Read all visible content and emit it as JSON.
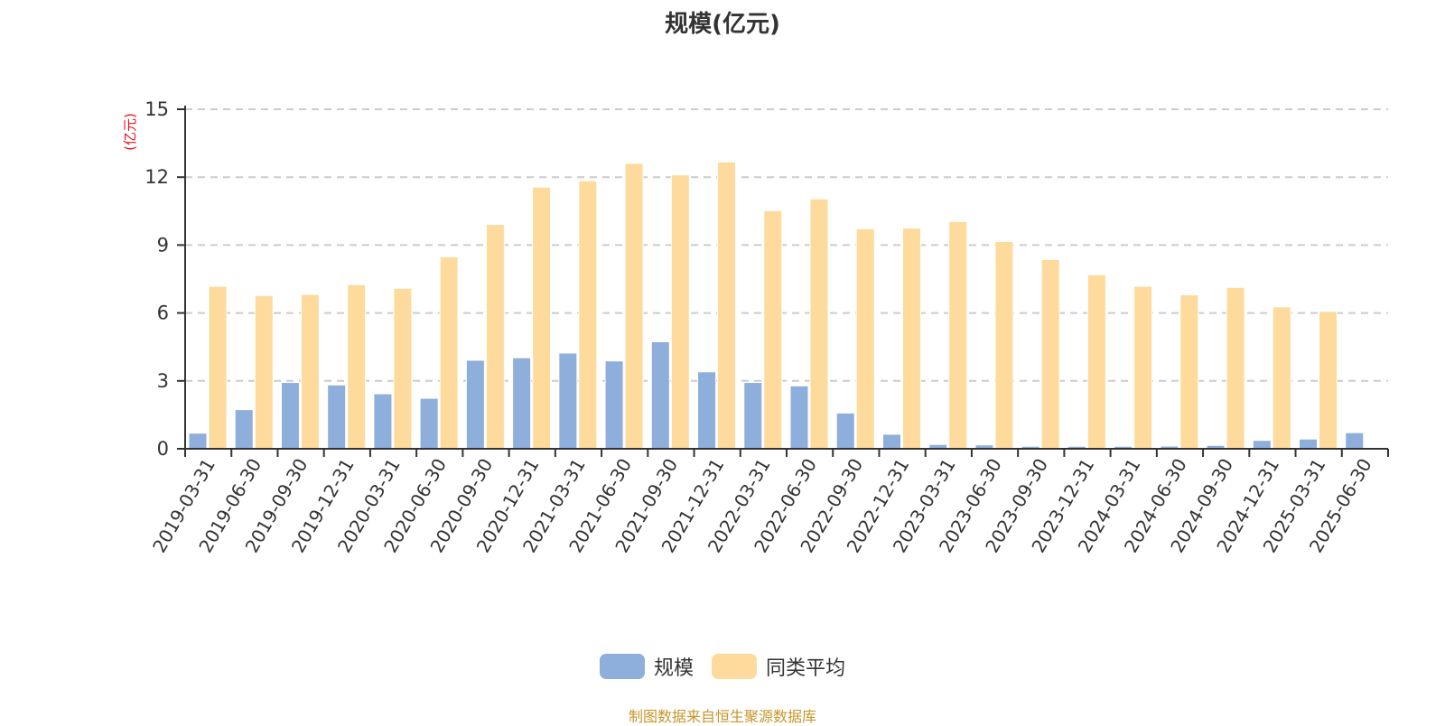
{
  "title": "规模(亿元)",
  "footer": "制图数据来自恒生聚源数据库",
  "y_unit_label": "(亿元)",
  "legend": [
    {
      "label": "规模",
      "color": "#8eaedb"
    },
    {
      "label": "同类平均",
      "color": "#fedb9c"
    }
  ],
  "colors": {
    "scale": "#8eaedb",
    "peer_avg": "#fedb9c",
    "axis": "#333333",
    "grid": "#cccccc",
    "unit_label": "#e8101b",
    "footer": "#c8962a"
  },
  "chart_data": {
    "type": "bar",
    "title": "规模(亿元)",
    "xlabel": "",
    "ylabel": "(亿元)",
    "ylim": [
      0,
      15
    ],
    "yticks": [
      0,
      3,
      6,
      9,
      12,
      15
    ],
    "grid": true,
    "legend_position": "bottom",
    "categories": [
      "2019-03-31",
      "2019-06-30",
      "2019-09-30",
      "2019-12-31",
      "2020-03-31",
      "2020-06-30",
      "2020-09-30",
      "2020-12-31",
      "2021-03-31",
      "2021-06-30",
      "2021-09-30",
      "2021-12-31",
      "2022-03-31",
      "2022-06-30",
      "2022-09-30",
      "2022-12-31",
      "2023-03-31",
      "2023-06-30",
      "2023-09-30",
      "2023-12-31",
      "2024-03-31",
      "2024-06-30",
      "2024-09-30",
      "2024-12-31",
      "2025-03-31",
      "2025-06-30"
    ],
    "series": [
      {
        "name": "规模",
        "values": [
          0.69,
          1.73,
          2.93,
          2.82,
          2.43,
          2.23,
          3.91,
          4.02,
          4.23,
          3.88,
          4.73,
          3.4,
          2.93,
          2.78,
          1.58,
          0.64,
          0.19,
          0.17,
          0.11,
          0.11,
          0.11,
          0.12,
          0.15,
          0.37,
          0.43,
          0.71
        ]
      },
      {
        "name": "同类平均",
        "values": [
          7.18,
          6.77,
          6.82,
          7.25,
          7.09,
          8.48,
          9.91,
          11.56,
          11.84,
          12.61,
          12.1,
          12.67,
          10.52,
          11.04,
          9.72,
          9.75,
          10.04,
          9.16,
          8.36,
          7.69,
          7.18,
          6.8,
          7.13,
          6.27,
          6.07,
          null
        ]
      }
    ]
  }
}
